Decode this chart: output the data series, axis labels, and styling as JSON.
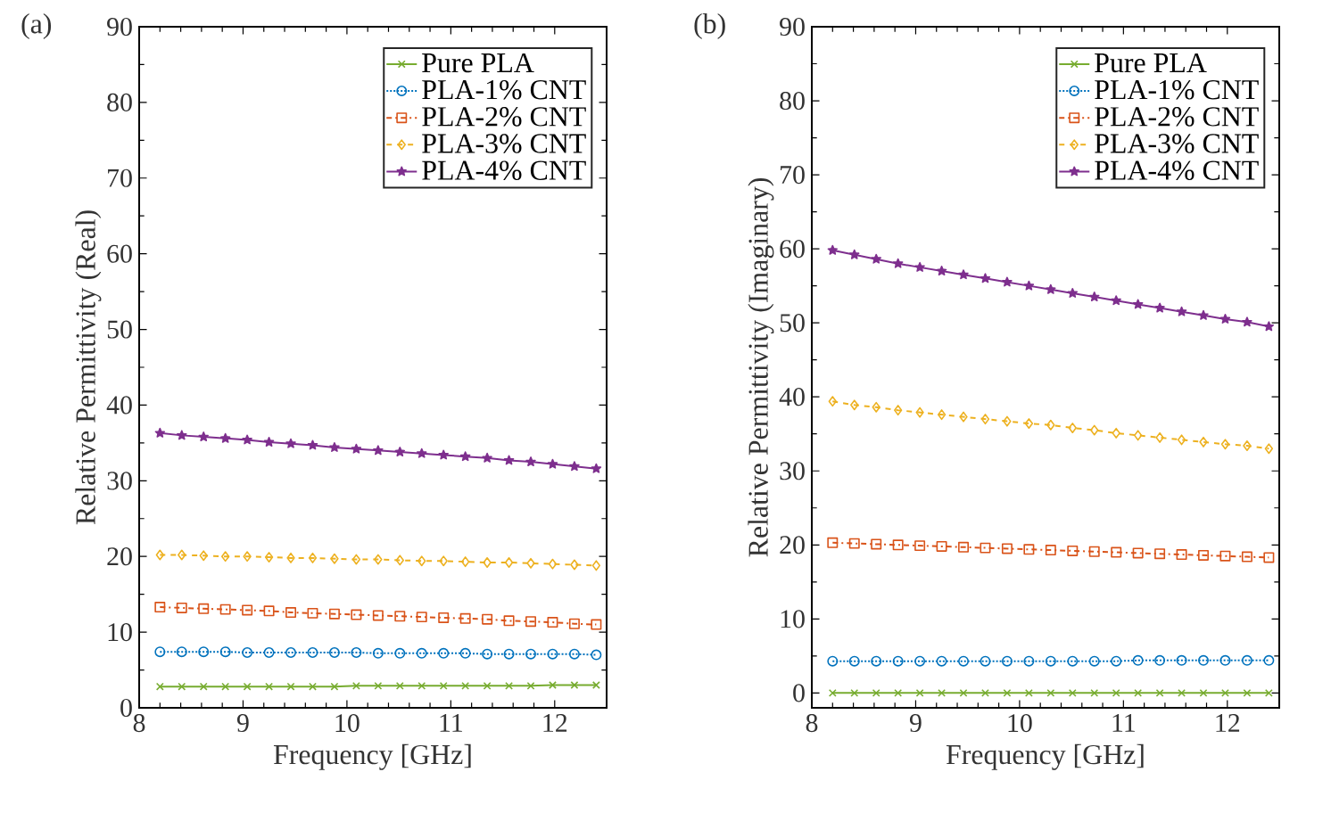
{
  "chart_data": [
    {
      "type": "line",
      "title": "(a)",
      "xlabel": "Frequency [GHz]",
      "ylabel": "Relative Permittivity (Real)",
      "x": [
        8.2,
        8.41,
        8.62,
        8.83,
        9.04,
        9.25,
        9.46,
        9.67,
        9.88,
        10.09,
        10.3,
        10.51,
        10.72,
        10.93,
        11.14,
        11.35,
        11.56,
        11.77,
        11.98,
        12.19,
        12.4
      ],
      "xlim": [
        8,
        12.5
      ],
      "ylim": [
        0,
        90
      ],
      "xticks": [
        8,
        9,
        10,
        11,
        12
      ],
      "yticks": [
        0,
        10,
        20,
        30,
        40,
        50,
        60,
        70,
        80,
        90
      ],
      "legend": "top right",
      "series": [
        {
          "name": "Pure PLA",
          "color": "#77ac30",
          "marker": "cross",
          "line_style": "solid",
          "values": [
            2.8,
            2.8,
            2.8,
            2.8,
            2.8,
            2.8,
            2.8,
            2.8,
            2.8,
            2.9,
            2.9,
            2.9,
            2.9,
            2.9,
            2.9,
            2.9,
            2.9,
            2.9,
            3.0,
            3.0,
            3.0
          ]
        },
        {
          "name": "PLA-1% CNT",
          "color": "#0072bd",
          "marker": "circle",
          "line_style": "dotted",
          "values": [
            7.4,
            7.4,
            7.4,
            7.4,
            7.3,
            7.3,
            7.3,
            7.3,
            7.3,
            7.3,
            7.2,
            7.2,
            7.2,
            7.2,
            7.2,
            7.1,
            7.1,
            7.1,
            7.1,
            7.1,
            7.0
          ]
        },
        {
          "name": "PLA-2% CNT",
          "color": "#d95319",
          "marker": "square",
          "line_style": "dashdot",
          "values": [
            13.3,
            13.2,
            13.1,
            13.0,
            12.9,
            12.8,
            12.6,
            12.5,
            12.4,
            12.3,
            12.2,
            12.1,
            12.0,
            11.9,
            11.8,
            11.7,
            11.5,
            11.4,
            11.3,
            11.1,
            11.0
          ]
        },
        {
          "name": "PLA-3% CNT",
          "color": "#edb120",
          "marker": "diamond",
          "line_style": "dashed",
          "values": [
            20.2,
            20.2,
            20.1,
            20.0,
            20.0,
            19.9,
            19.8,
            19.8,
            19.7,
            19.6,
            19.6,
            19.5,
            19.4,
            19.4,
            19.3,
            19.2,
            19.2,
            19.1,
            19.0,
            18.9,
            18.8
          ]
        },
        {
          "name": "PLA-4% CNT",
          "color": "#7e2f8e",
          "marker": "star",
          "line_style": "solid",
          "values": [
            36.3,
            36.0,
            35.8,
            35.6,
            35.4,
            35.1,
            34.9,
            34.7,
            34.4,
            34.2,
            34.0,
            33.8,
            33.6,
            33.4,
            33.2,
            33.0,
            32.7,
            32.5,
            32.2,
            31.9,
            31.6
          ]
        }
      ]
    },
    {
      "type": "line",
      "title": "(b)",
      "xlabel": "Frequency [GHz]",
      "ylabel": "Relative Permittivity (Imaginary)",
      "x": [
        8.2,
        8.41,
        8.62,
        8.83,
        9.04,
        9.25,
        9.46,
        9.67,
        9.88,
        10.09,
        10.3,
        10.51,
        10.72,
        10.93,
        11.14,
        11.35,
        11.56,
        11.77,
        11.98,
        12.19,
        12.4
      ],
      "xlim": [
        8,
        12.5
      ],
      "ylim": [
        -2,
        90
      ],
      "xticks": [
        8,
        9,
        10,
        11,
        12
      ],
      "yticks": [
        0,
        10,
        20,
        30,
        40,
        50,
        60,
        70,
        80,
        90
      ],
      "legend": "top right",
      "series": [
        {
          "name": "Pure PLA",
          "color": "#77ac30",
          "marker": "cross",
          "line_style": "solid",
          "values": [
            0,
            0,
            0,
            0,
            0,
            0,
            0,
            0,
            0,
            0,
            0,
            0,
            0,
            0,
            0,
            0,
            0,
            0,
            0,
            0,
            0
          ]
        },
        {
          "name": "PLA-1% CNT",
          "color": "#0072bd",
          "marker": "circle",
          "line_style": "dotted",
          "values": [
            4.3,
            4.3,
            4.3,
            4.3,
            4.3,
            4.3,
            4.3,
            4.3,
            4.3,
            4.3,
            4.3,
            4.3,
            4.3,
            4.3,
            4.4,
            4.4,
            4.4,
            4.4,
            4.4,
            4.4,
            4.4
          ]
        },
        {
          "name": "PLA-2% CNT",
          "color": "#d95319",
          "marker": "square",
          "line_style": "dashdot",
          "values": [
            20.3,
            20.2,
            20.1,
            20.0,
            19.9,
            19.8,
            19.7,
            19.6,
            19.5,
            19.4,
            19.3,
            19.2,
            19.1,
            19.0,
            18.9,
            18.8,
            18.7,
            18.6,
            18.5,
            18.4,
            18.3
          ]
        },
        {
          "name": "PLA-3% CNT",
          "color": "#edb120",
          "marker": "diamond",
          "line_style": "dashed",
          "values": [
            39.4,
            38.9,
            38.6,
            38.2,
            37.9,
            37.6,
            37.3,
            37.0,
            36.7,
            36.4,
            36.2,
            35.8,
            35.5,
            35.1,
            34.8,
            34.5,
            34.2,
            33.9,
            33.6,
            33.4,
            33.0
          ]
        },
        {
          "name": "PLA-4% CNT",
          "color": "#7e2f8e",
          "marker": "star",
          "line_style": "solid",
          "values": [
            59.8,
            59.2,
            58.6,
            58.0,
            57.5,
            57.0,
            56.5,
            56.0,
            55.5,
            55.0,
            54.5,
            54.0,
            53.5,
            53.0,
            52.5,
            52.0,
            51.5,
            51.0,
            50.5,
            50.1,
            49.5
          ]
        }
      ]
    }
  ]
}
